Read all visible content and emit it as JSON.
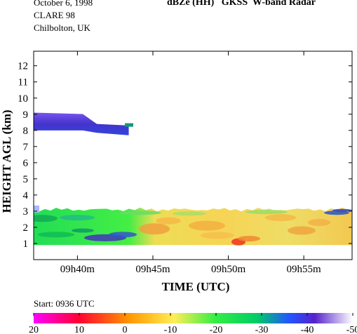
{
  "header": {
    "date": "October  6, 1998",
    "campaign": "CLARE 98",
    "location": "Chilbolton, UK",
    "title": "dBZe (HH)   GKSS  W-band Radar",
    "start_label": "Start: 0936 UTC"
  },
  "chart_data": {
    "type": "heatmap",
    "title": "dBZe (HH)   GKSS  W-band Radar",
    "xlabel": "TIME (UTC)",
    "ylabel": "HEIGHT AGL (km)",
    "xlim": [
      "09h37.1m",
      "09h58.2m"
    ],
    "ylim": [
      0,
      12.9
    ],
    "x_ticks": [
      "09h40m",
      "09h45m",
      "09h50m",
      "09h55m"
    ],
    "y_ticks": [
      "1",
      "2",
      "3",
      "4",
      "5",
      "6",
      "7",
      "8",
      "9",
      "10",
      "11",
      "12"
    ],
    "colorbar": {
      "ticks": [
        "20",
        "10",
        "0",
        "-10",
        "-20",
        "-30",
        "-40",
        "-50"
      ],
      "range": [
        20,
        -50
      ],
      "colors": [
        "#ff00ff",
        "#ff0000",
        "#ffa500",
        "#ffff66",
        "#00ff00",
        "#0066ff",
        "#4400cc",
        "#ffffff"
      ]
    },
    "layers": [
      {
        "name": "upper cloud",
        "time_start": "09h37.1m",
        "time_end": "09h43.4m",
        "base_km": 7.7,
        "top_km": 9.1,
        "dbz_range": [
          -45,
          -30
        ]
      },
      {
        "name": "lower cloud",
        "time_start": "09h37.1m",
        "time_end": "09h58.2m",
        "base_km": 0.9,
        "top_km": 3.2,
        "dbz_range": [
          -40,
          5
        ]
      }
    ]
  }
}
